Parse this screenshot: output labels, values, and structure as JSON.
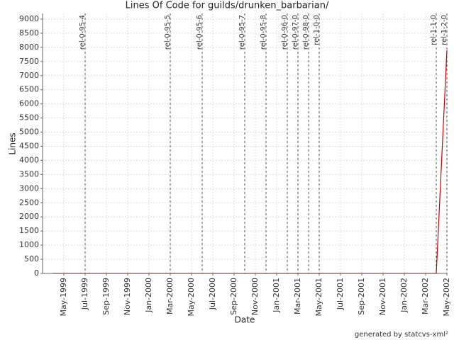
{
  "chart_data": {
    "type": "line",
    "title": "Lines Of Code for guilds/drunken_barbarian/",
    "x_label": "Date",
    "y_label": "Lines",
    "footer": "generated by statcvs-xml²",
    "x": [
      "1999-04",
      "2002-04",
      "2002-05"
    ],
    "series": [
      {
        "name": "Lines",
        "color": "#cc0000",
        "values": [
          0,
          0,
          7900
        ]
      }
    ],
    "xlim": [
      "1999-03",
      "2002-05"
    ],
    "xticks": [
      {
        "value": "1999-05",
        "label": "May-1999"
      },
      {
        "value": "1999-07",
        "label": "Jul-1999"
      },
      {
        "value": "1999-09",
        "label": "Sep-1999"
      },
      {
        "value": "1999-11",
        "label": "Nov-1999"
      },
      {
        "value": "2000-01",
        "label": "Jan-2000"
      },
      {
        "value": "2000-03",
        "label": "Mar-2000"
      },
      {
        "value": "2000-05",
        "label": "May-2000"
      },
      {
        "value": "2000-07",
        "label": "Jul-2000"
      },
      {
        "value": "2000-09",
        "label": "Sep-2000"
      },
      {
        "value": "2000-11",
        "label": "Nov-2000"
      },
      {
        "value": "2001-01",
        "label": "Jan-2001"
      },
      {
        "value": "2001-03",
        "label": "Mar-2001"
      },
      {
        "value": "2001-05",
        "label": "May-2001"
      },
      {
        "value": "2001-07",
        "label": "Jul-2001"
      },
      {
        "value": "2001-09",
        "label": "Sep-2001"
      },
      {
        "value": "2001-11",
        "label": "Nov-2001"
      },
      {
        "value": "2002-01",
        "label": "Jan-2002"
      },
      {
        "value": "2002-03",
        "label": "Mar-2002"
      },
      {
        "value": "2002-05",
        "label": "May-2002"
      }
    ],
    "ylim": [
      0,
      9200
    ],
    "yticks": [
      0,
      500,
      1000,
      1500,
      2000,
      2500,
      3000,
      3500,
      4000,
      4500,
      5000,
      5500,
      6000,
      6500,
      7000,
      7500,
      8000,
      8500,
      9000
    ],
    "grid": true,
    "annotations": [
      {
        "label": "rel-0-95-4",
        "x": "1999-07"
      },
      {
        "label": "rel-0-95-5",
        "x": "2000-03"
      },
      {
        "label": "rel-0-95-6",
        "x": "2000-06"
      },
      {
        "label": "rel-0-95-7",
        "x": "2000-10"
      },
      {
        "label": "rel-0-95-8",
        "x": "2000-12"
      },
      {
        "label": "rel-0-96-0",
        "x": "2001-02"
      },
      {
        "label": "rel-0-97-0",
        "x": "2001-03"
      },
      {
        "label": "rel-0-98-0",
        "x": "2001-04"
      },
      {
        "label": "rel-1-0-0",
        "x": "2001-05"
      },
      {
        "label": "rel-1-1-0",
        "x": "2002-04"
      },
      {
        "label": "rel-1-2-0",
        "x": "2002-05"
      }
    ]
  }
}
